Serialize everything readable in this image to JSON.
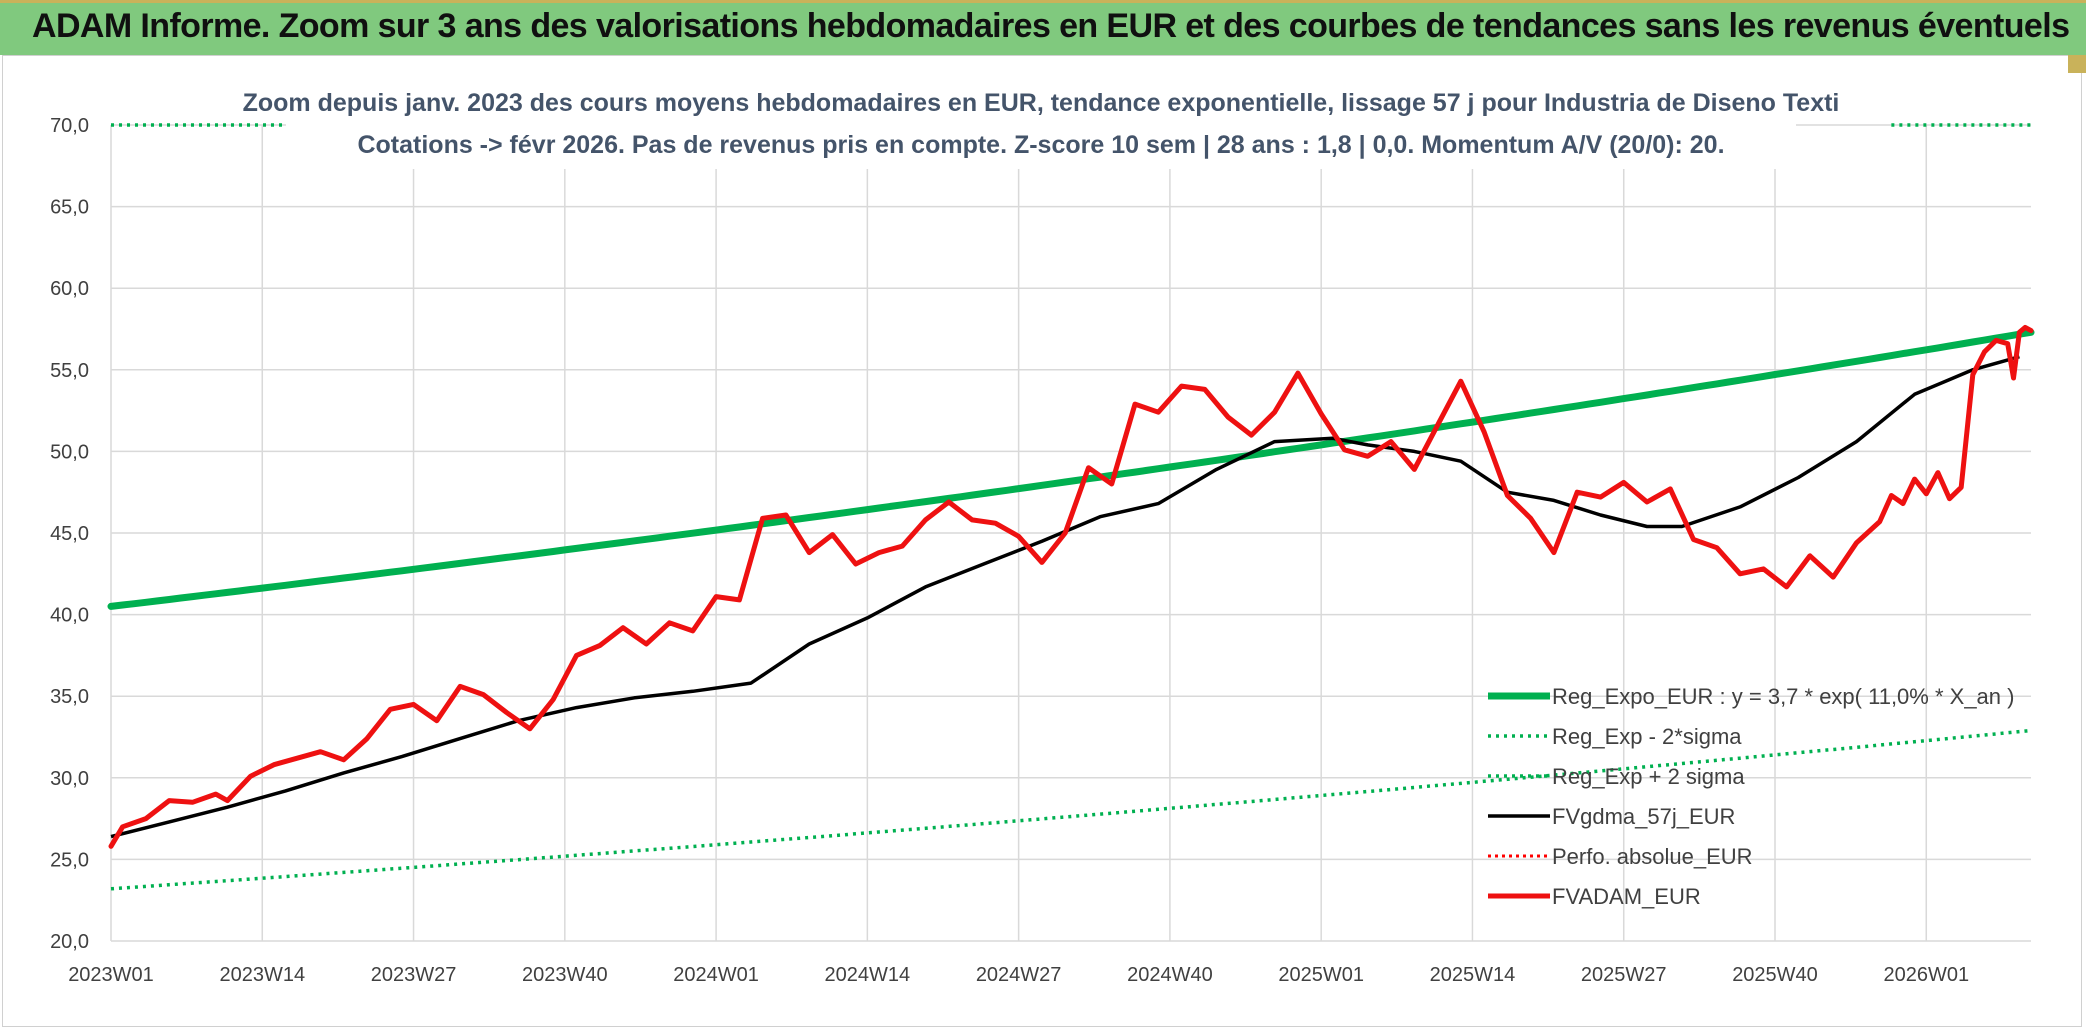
{
  "banner": {
    "title": "ADAM Informe. Zoom sur 3 ans des valorisations hebdomadaires en EUR et des courbes de tendances sans les revenus éventuels",
    "color": "#80c97e"
  },
  "chart_data": {
    "type": "line",
    "title": "Zoom depuis janv. 2023 des cours moyens hebdomadaires en EUR, tendance exponentielle, lissage 57 j pour Industria de Diseno Texti",
    "subtitle": "Cotations -> févr 2026. Pas de revenus pris en compte. Z-score 10 sem | 28 ans : 1,8 | 0,0. Momentum A/V (20/0): 20.",
    "xlabel": "",
    "ylabel": "",
    "ylim": [
      20,
      70
    ],
    "yticks": [
      "20,0",
      "25,0",
      "30,0",
      "35,0",
      "40,0",
      "45,0",
      "50,0",
      "55,0",
      "60,0",
      "65,0",
      "70,0"
    ],
    "xticks": [
      "2023W01",
      "2023W14",
      "2023W27",
      "2023W40",
      "2024W01",
      "2024W14",
      "2024W27",
      "2024W40",
      "2025W01",
      "2025W14",
      "2025W27",
      "2025W40",
      "2026W01"
    ],
    "weeks_total": 165,
    "grid": true,
    "legend_position": "bottom-right",
    "series": [
      {
        "name": "Reg_Expo_EUR : y = 3,7 * exp( 11,0% *  X_an )",
        "color": "#00b050",
        "style": "solid-thick",
        "start": 40.5,
        "end": 57.3
      },
      {
        "name": "Reg_Exp - 2*sigma",
        "color": "#00b050",
        "style": "dotted",
        "start": 23.2,
        "end": 32.9
      },
      {
        "name": "Reg_Exp + 2 sigma",
        "color": "#00b050",
        "style": "dotted",
        "start": 70.0,
        "end": 70.0
      },
      {
        "name": "FVgdma_57j_EUR",
        "color": "#000000",
        "style": "solid",
        "values": [
          26.4,
          27.3,
          28.2,
          29.2,
          30.3,
          31.3,
          32.4,
          33.5,
          34.3,
          34.9,
          35.3,
          35.8,
          38.2,
          39.8,
          41.7,
          43.1,
          44.5,
          46.0,
          46.8,
          48.9,
          50.6,
          50.8,
          50.4,
          50.0,
          49.4,
          47.5,
          47.0,
          46.1,
          45.4,
          45.4,
          46.6,
          48.4,
          50.6,
          53.5,
          55.0,
          55.8
        ],
        "value_weeks": [
          0,
          5,
          10,
          15,
          20,
          25,
          30,
          35,
          40,
          45,
          50,
          55,
          60,
          65,
          70,
          75,
          80,
          85,
          90,
          95,
          100,
          105,
          108,
          112,
          116,
          120,
          124,
          128,
          132,
          135,
          140,
          145,
          150,
          155,
          160,
          164
        ]
      },
      {
        "name": "Perfo. absolue_EUR",
        "color": "#ff0000",
        "style": "dotted",
        "values": []
      },
      {
        "name": "FVADAM_EUR",
        "color": "#ee1111",
        "style": "solid-thick",
        "values": [
          25.8,
          27.0,
          27.5,
          28.6,
          28.5,
          29.0,
          28.6,
          30.1,
          30.8,
          31.2,
          31.6,
          31.1,
          32.4,
          34.2,
          34.5,
          33.5,
          35.6,
          35.1,
          34.0,
          33.0,
          34.8,
          37.5,
          38.1,
          39.2,
          38.2,
          39.5,
          39.0,
          41.1,
          40.9,
          45.9,
          46.1,
          43.8,
          44.9,
          43.1,
          43.8,
          44.2,
          45.8,
          46.9,
          45.8,
          45.6,
          44.8,
          43.2,
          45.0,
          49.0,
          48.0,
          52.9,
          52.4,
          54.0,
          53.8,
          52.1,
          51.0,
          52.4,
          54.8,
          52.3,
          50.1,
          49.7,
          50.6,
          48.9,
          51.6,
          54.3,
          51.2,
          47.3,
          45.9,
          43.8,
          47.5,
          47.2,
          48.1,
          46.9,
          47.7,
          44.6,
          44.1,
          42.5,
          42.8,
          41.7,
          43.6,
          42.3,
          44.4,
          45.7,
          47.3,
          46.8,
          48.3,
          47.4,
          48.7,
          47.1,
          47.8,
          54.7,
          56.1,
          56.8,
          56.6,
          54.5,
          57.3,
          57.6,
          57.4
        ],
        "value_weeks": [
          0,
          1,
          3,
          5,
          7,
          9,
          10,
          12,
          14,
          16,
          18,
          20,
          22,
          24,
          26,
          28,
          30,
          32,
          34,
          36,
          38,
          40,
          42,
          44,
          46,
          48,
          50,
          52,
          54,
          56,
          58,
          60,
          62,
          64,
          66,
          68,
          70,
          72,
          74,
          76,
          78,
          80,
          82,
          84,
          86,
          88,
          90,
          92,
          94,
          96,
          98,
          100,
          102,
          104,
          106,
          108,
          110,
          112,
          114,
          116,
          118,
          120,
          122,
          124,
          126,
          128,
          130,
          132,
          134,
          136,
          138,
          140,
          142,
          144,
          146,
          148,
          150,
          152,
          153,
          154,
          155,
          156,
          157,
          158,
          159,
          160,
          161,
          162,
          163,
          163.5,
          164,
          164.5,
          165
        ]
      }
    ]
  }
}
